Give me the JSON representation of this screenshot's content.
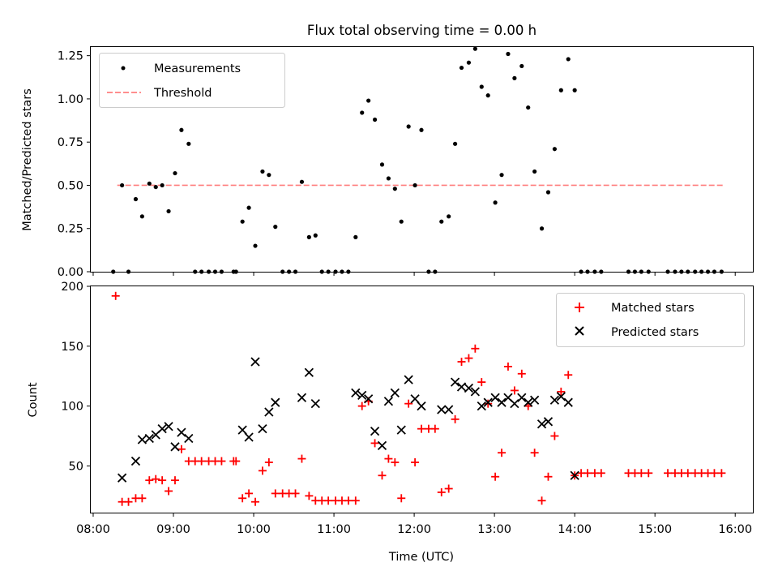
{
  "chart_data": [
    {
      "type": "scatter",
      "title": "Flux total observing time = 0.00 h",
      "xlabel": "",
      "ylabel": "Matched/Predicted stars",
      "xlim": [
        7.97,
        16.22
      ],
      "ylim": [
        0,
        1.3
      ],
      "yticks": [
        0.0,
        0.25,
        0.5,
        0.75,
        1.0,
        1.25
      ],
      "ytick_labels": [
        "0.00",
        "0.25",
        "0.50",
        "0.75",
        "1.00",
        "1.25"
      ],
      "legend": [
        "Measurements",
        "Threshold"
      ],
      "legend_position": "top-left",
      "threshold": {
        "name": "Threshold",
        "value": 0.5,
        "x_start": 8.3,
        "x_end": 15.85,
        "color": "#ff7f7f"
      },
      "series": [
        {
          "name": "Measurements",
          "color": "#000000",
          "x": [
            8.25,
            8.36,
            8.44,
            8.53,
            8.61,
            8.7,
            8.78,
            8.86,
            8.94,
            9.02,
            9.1,
            9.19,
            9.27,
            9.35,
            9.44,
            9.52,
            9.6,
            9.75,
            9.78,
            9.86,
            9.94,
            10.02,
            10.11,
            10.19,
            10.27,
            10.36,
            10.44,
            10.52,
            10.6,
            10.69,
            10.77,
            10.85,
            10.93,
            11.02,
            11.1,
            11.18,
            11.27,
            11.35,
            11.43,
            11.51,
            11.6,
            11.68,
            11.76,
            11.84,
            11.93,
            12.01,
            12.09,
            12.18,
            12.26,
            12.34,
            12.43,
            12.51,
            12.59,
            12.68,
            12.76,
            12.84,
            12.92,
            13.01,
            13.09,
            13.17,
            13.25,
            13.34,
            13.42,
            13.5,
            13.59,
            13.67,
            13.75,
            13.83,
            13.92,
            14.0,
            14.08,
            14.16,
            14.25,
            14.33,
            14.67,
            14.75,
            14.83,
            14.92,
            15.16,
            15.25,
            15.33,
            15.41,
            15.5,
            15.58,
            15.66,
            15.74,
            15.83
          ],
          "y": [
            0.0,
            0.5,
            0.0,
            0.42,
            0.32,
            0.51,
            0.49,
            0.5,
            0.35,
            0.57,
            0.82,
            0.74,
            0.0,
            0.0,
            0.0,
            0.0,
            0.0,
            0.0,
            0.0,
            0.29,
            0.37,
            0.15,
            0.58,
            0.56,
            0.26,
            0.0,
            0.0,
            0.0,
            0.52,
            0.2,
            0.21,
            0.0,
            0.0,
            0.0,
            0.0,
            0.0,
            0.2,
            0.92,
            0.99,
            0.88,
            0.62,
            0.54,
            0.48,
            0.29,
            0.84,
            0.5,
            0.82,
            0.0,
            0.0,
            0.29,
            0.32,
            0.74,
            1.18,
            1.21,
            1.29,
            1.07,
            1.02,
            0.4,
            0.56,
            1.26,
            1.12,
            1.19,
            0.95,
            0.58,
            0.25,
            0.46,
            0.71,
            1.05,
            1.23,
            1.05,
            0.0,
            0.0,
            0.0,
            0.0,
            0.0,
            0.0,
            0.0,
            0.0,
            0.0,
            0.0,
            0.0,
            0.0,
            0.0,
            0.0,
            0.0,
            0.0,
            0.0
          ]
        }
      ]
    },
    {
      "type": "scatter",
      "title": "",
      "xlabel": "Time (UTC)",
      "ylabel": "Count",
      "xlim": [
        7.97,
        16.22
      ],
      "ylim": [
        11,
        200
      ],
      "yticks": [
        50,
        100,
        150,
        200
      ],
      "ytick_labels": [
        "50",
        "100",
        "150",
        "200"
      ],
      "xticks": [
        8,
        9,
        10,
        11,
        12,
        13,
        14,
        15,
        16
      ],
      "xtick_labels": [
        "08:00",
        "09:00",
        "10:00",
        "11:00",
        "12:00",
        "13:00",
        "14:00",
        "15:00",
        "16:00"
      ],
      "legend": [
        "Matched stars",
        "Predicted stars"
      ],
      "legend_position": "top-right",
      "series": [
        {
          "name": "Matched stars",
          "marker": "+",
          "color": "#ff0000",
          "x": [
            8.28,
            8.36,
            8.44,
            8.53,
            8.61,
            8.7,
            8.78,
            8.86,
            8.94,
            9.02,
            9.1,
            9.19,
            9.27,
            9.35,
            9.44,
            9.52,
            9.6,
            9.75,
            9.78,
            9.86,
            9.94,
            10.02,
            10.11,
            10.19,
            10.27,
            10.36,
            10.44,
            10.52,
            10.6,
            10.69,
            10.77,
            10.85,
            10.93,
            11.02,
            11.1,
            11.18,
            11.27,
            11.35,
            11.43,
            11.51,
            11.6,
            11.68,
            11.76,
            11.84,
            11.93,
            12.01,
            12.09,
            12.18,
            12.26,
            12.34,
            12.43,
            12.51,
            12.59,
            12.68,
            12.76,
            12.84,
            12.92,
            13.01,
            13.09,
            13.17,
            13.25,
            13.34,
            13.42,
            13.5,
            13.59,
            13.67,
            13.75,
            13.83,
            13.92,
            14.0,
            14.08,
            14.16,
            14.25,
            14.33,
            14.67,
            14.75,
            14.83,
            14.92,
            15.16,
            15.25,
            15.33,
            15.41,
            15.5,
            15.58,
            15.66,
            15.74,
            15.83
          ],
          "y": [
            192,
            20,
            20,
            23,
            23,
            38,
            39,
            38,
            29,
            38,
            64,
            54,
            54,
            54,
            54,
            54,
            54,
            54,
            54,
            23,
            27,
            20,
            46,
            53,
            27,
            27,
            27,
            27,
            56,
            25,
            21,
            21,
            21,
            21,
            21,
            21,
            21,
            100,
            104,
            69,
            42,
            56,
            53,
            23,
            102,
            53,
            81,
            81,
            81,
            28,
            31,
            89,
            137,
            140,
            148,
            120,
            102,
            41,
            61,
            133,
            113,
            127,
            100,
            61,
            21,
            41,
            75,
            112,
            126,
            42,
            44,
            44,
            44,
            44,
            44,
            44,
            44,
            44,
            44,
            44,
            44,
            44,
            44,
            44,
            44,
            44,
            44
          ]
        },
        {
          "name": "Predicted stars",
          "marker": "x",
          "color": "#000000",
          "x": [
            8.36,
            8.53,
            8.61,
            8.7,
            8.78,
            8.86,
            8.94,
            9.02,
            9.1,
            9.19,
            9.86,
            9.94,
            10.02,
            10.11,
            10.19,
            10.27,
            10.6,
            10.69,
            10.77,
            11.27,
            11.35,
            11.43,
            11.51,
            11.6,
            11.68,
            11.76,
            11.84,
            11.93,
            12.01,
            12.09,
            12.34,
            12.43,
            12.51,
            12.59,
            12.68,
            12.76,
            12.84,
            12.92,
            13.01,
            13.09,
            13.17,
            13.25,
            13.34,
            13.42,
            13.5,
            13.59,
            13.67,
            13.75,
            13.83,
            13.92,
            14.0
          ],
          "y": [
            40,
            54,
            72,
            73,
            76,
            81,
            83,
            66,
            78,
            73,
            80,
            74,
            137,
            81,
            95,
            103,
            107,
            128,
            102,
            111,
            109,
            106,
            79,
            67,
            104,
            111,
            80,
            122,
            106,
            100,
            97,
            97,
            120,
            116,
            115,
            112,
            100,
            103,
            107,
            103,
            107,
            102,
            107,
            103,
            105,
            85,
            87,
            105,
            108,
            103,
            42
          ]
        }
      ]
    }
  ]
}
